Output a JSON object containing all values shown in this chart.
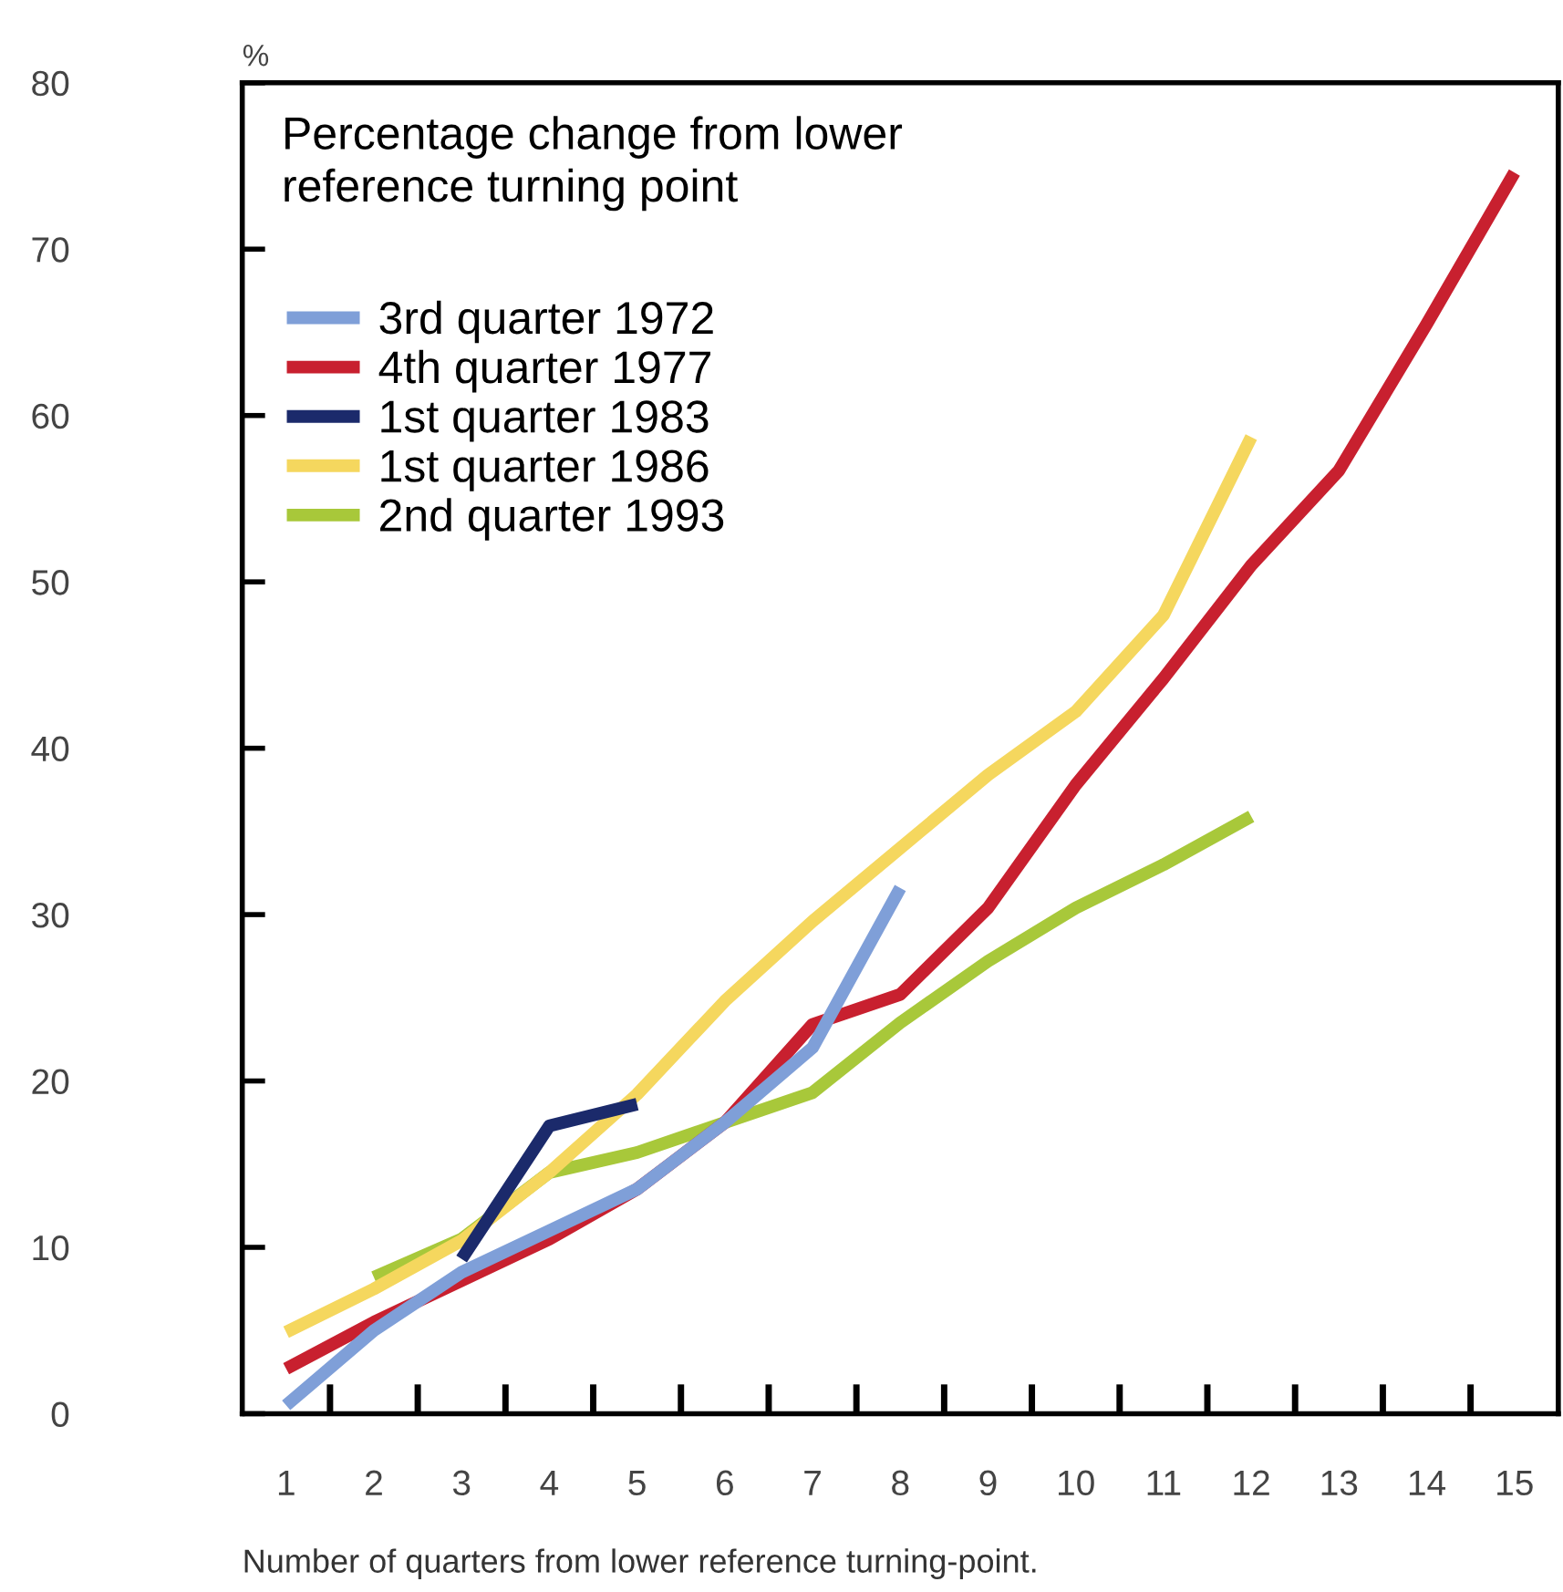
{
  "chart_data": {
    "type": "line",
    "title": "Percentage change from lower\nreference turning point",
    "ylabel": "%",
    "xlabel": "Number of quarters from lower reference turning-point.",
    "xlim": [
      0.5,
      15.5
    ],
    "xticks": [
      1,
      2,
      3,
      4,
      5,
      6,
      7,
      8,
      9,
      10,
      11,
      12,
      13,
      14,
      15
    ],
    "ylim": [
      0,
      80
    ],
    "yticks": [
      0,
      10,
      20,
      30,
      40,
      50,
      60,
      70,
      80
    ],
    "grid": false,
    "legend": "top left",
    "marker": "none",
    "line_style": "solid",
    "series": [
      {
        "name": "3rd quarter 1972",
        "color": "#7f9fd8",
        "x": [
          1,
          2,
          3,
          4,
          5,
          6,
          7,
          8
        ],
        "values": [
          0.5,
          5,
          8.5,
          11,
          13.5,
          17.5,
          22,
          31.6
        ]
      },
      {
        "name": "4th quarter 1977",
        "color": "#c8202f",
        "x": [
          1,
          2,
          3,
          4,
          5,
          6,
          7,
          8,
          9,
          10,
          11,
          12,
          13,
          14,
          15
        ],
        "values": [
          2.7,
          5.5,
          8,
          10.5,
          13.5,
          17.5,
          23.4,
          25.2,
          30.4,
          37.8,
          44.2,
          51,
          56.7,
          65.5,
          74.6
        ]
      },
      {
        "name": "1st quarter 1983",
        "color": "#1b2a6b",
        "x": [
          3,
          4,
          5
        ],
        "values": [
          9.3,
          17.3,
          18.6
        ]
      },
      {
        "name": "1st quarter 1986",
        "color": "#f5d75e",
        "x": [
          1,
          2,
          3,
          4,
          5,
          6,
          7,
          8,
          9,
          10,
          11,
          12
        ],
        "values": [
          4.9,
          7.5,
          10.4,
          14.5,
          19.2,
          24.8,
          29.6,
          34,
          38.4,
          42.2,
          48,
          58.7
        ]
      },
      {
        "name": "2nd quarter 1993",
        "color": "#a8c83a",
        "x": [
          2,
          3,
          4,
          5,
          6,
          7,
          8,
          9,
          10,
          11,
          12
        ],
        "values": [
          8.2,
          10.5,
          14.5,
          15.7,
          17.5,
          19.3,
          23.5,
          27.2,
          30.4,
          33,
          35.9
        ]
      }
    ]
  }
}
